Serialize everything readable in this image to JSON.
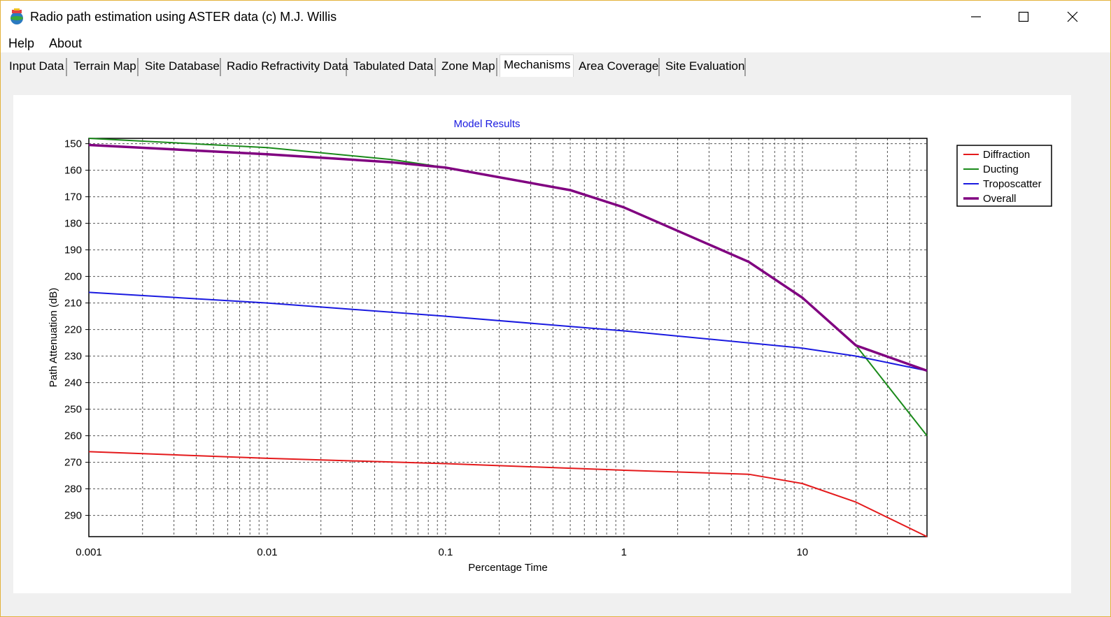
{
  "window": {
    "title": "Radio path estimation using ASTER data (c) M.J. Willis"
  },
  "menu": {
    "items": [
      "Help",
      "About"
    ]
  },
  "tabs": [
    {
      "label": "Input Data",
      "active": false
    },
    {
      "label": "Terrain Map",
      "active": false
    },
    {
      "label": "Site Database",
      "active": false
    },
    {
      "label": "Radio Refractivity Data",
      "active": false
    },
    {
      "label": "Tabulated Data",
      "active": false
    },
    {
      "label": "Zone Map",
      "active": false
    },
    {
      "label": "Mechanisms",
      "active": true
    },
    {
      "label": "Area Coverage",
      "active": false
    },
    {
      "label": "Site Evaluation",
      "active": false
    }
  ],
  "colors": {
    "diffraction": "#e41a1c",
    "ducting": "#1a8a1a",
    "troposcatter": "#1a1ae0",
    "overall": "#800080",
    "title": "#1a1ae0"
  },
  "chart_data": {
    "type": "line",
    "title": "Model Results",
    "xlabel": "Percentage Time",
    "ylabel": "Path Attenuation (dB)",
    "x_scale": "log",
    "xlim": [
      0.001,
      50
    ],
    "ylim": [
      148,
      298
    ],
    "y_inverted": true,
    "x_ticks": [
      0.001,
      0.01,
      0.1,
      1,
      10
    ],
    "x_tick_labels": [
      "0.001",
      "0.01",
      "0.1",
      "1",
      "10"
    ],
    "y_ticks": [
      150,
      160,
      170,
      180,
      190,
      200,
      210,
      220,
      230,
      240,
      250,
      260,
      270,
      280,
      290
    ],
    "y_tick_labels": [
      "150",
      "160",
      "170",
      "180",
      "190",
      "200",
      "210",
      "220",
      "230",
      "240",
      "250",
      "260",
      "270",
      "280",
      "290"
    ],
    "grid": true,
    "legend": "right",
    "series": [
      {
        "name": "Diffraction",
        "color": "#e41a1c",
        "x": [
          0.001,
          0.01,
          0.1,
          1,
          5,
          10,
          20,
          50
        ],
        "y": [
          266,
          268.5,
          270.5,
          273,
          274.5,
          278,
          285,
          298
        ]
      },
      {
        "name": "Ducting",
        "color": "#1a8a1a",
        "x": [
          0.001,
          0.01,
          0.05,
          0.1,
          0.5,
          1,
          5,
          10,
          20,
          50
        ],
        "y": [
          148,
          151.5,
          156,
          159,
          167.5,
          174,
          194.5,
          208,
          226,
          260
        ]
      },
      {
        "name": "Troposcatter",
        "color": "#1a1ae0",
        "x": [
          0.001,
          0.01,
          0.1,
          1,
          10,
          20,
          50
        ],
        "y": [
          206,
          210,
          215,
          220.5,
          227,
          230,
          235.5
        ]
      },
      {
        "name": "Overall",
        "color": "#800080",
        "x": [
          0.001,
          0.01,
          0.05,
          0.1,
          0.5,
          1,
          5,
          10,
          20,
          50
        ],
        "y": [
          150.5,
          154,
          157,
          159,
          167.5,
          174,
          194.5,
          208,
          226,
          235.5
        ]
      }
    ]
  }
}
